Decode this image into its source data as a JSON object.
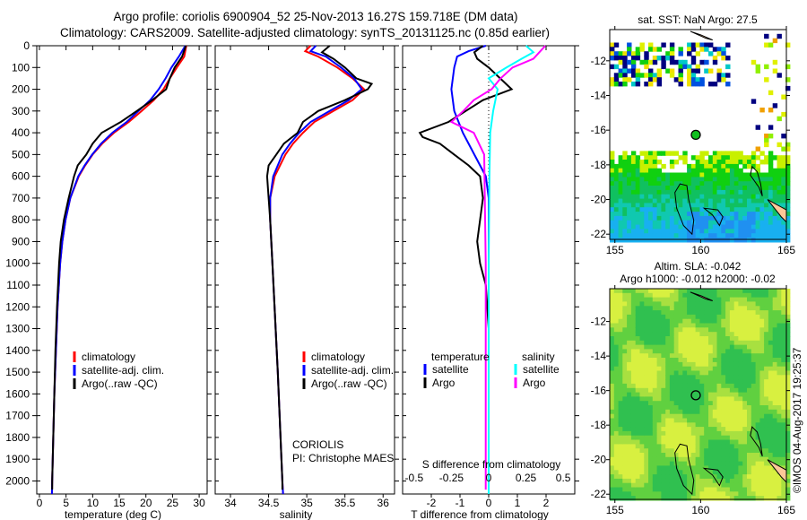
{
  "title_line1": "Argo profile: coriolis 6900904_52 25-Nov-2013 16.27S 159.718E (DM data)",
  "title_line2": "Climatology: CARS2009. Satellite-adjusted climatology: synTS_20131125.nc (0.85d earlier)",
  "footer_stamp": "©IMOS 04-Aug-2017 19:25:37",
  "colors": {
    "climatology": "#ff0000",
    "satellite": "#0000ff",
    "argo": "#000000",
    "s_satellite": "#00ffff",
    "s_argo": "#ff00ff"
  },
  "chart_data": [
    {
      "type": "line",
      "id": "temperature",
      "xlabel": "temperature (deg C)",
      "ylabel": "",
      "xlim": [
        -0.5,
        31.5
      ],
      "ylim": [
        2060,
        0
      ],
      "xticks": [
        0,
        5,
        10,
        15,
        20,
        25,
        30
      ],
      "yticks": [
        0,
        100,
        200,
        300,
        400,
        500,
        600,
        700,
        800,
        900,
        1000,
        1100,
        1200,
        1300,
        1400,
        1500,
        1600,
        1700,
        1800,
        1900,
        2000
      ],
      "legend": [
        "climatology",
        "satellite-adj. clim.",
        "Argo(..raw -QC)"
      ],
      "legend_position": "bottom-center",
      "series": [
        {
          "name": "climatology",
          "color_key": "climatology",
          "points": [
            [
              0,
              27.6
            ],
            [
              50,
              27.2
            ],
            [
              100,
              25.8
            ],
            [
              150,
              24.5
            ],
            [
              200,
              23.3
            ],
            [
              250,
              21.5
            ],
            [
              300,
              19.2
            ],
            [
              350,
              16.8
            ],
            [
              400,
              14
            ],
            [
              450,
              11.8
            ],
            [
              500,
              10
            ],
            [
              550,
              8.6
            ],
            [
              600,
              7.4
            ],
            [
              700,
              5.8
            ],
            [
              800,
              4.9
            ],
            [
              900,
              4.3
            ],
            [
              1000,
              3.9
            ],
            [
              1200,
              3.4
            ],
            [
              1400,
              3.1
            ],
            [
              1600,
              2.8
            ],
            [
              1800,
              2.6
            ],
            [
              2000,
              2.4
            ],
            [
              2060,
              2.35
            ]
          ]
        },
        {
          "name": "satellite-adj. clim.",
          "color_key": "satellite",
          "points": [
            [
              0,
              27.4
            ],
            [
              50,
              26.2
            ],
            [
              100,
              24.8
            ],
            [
              150,
              23.7
            ],
            [
              200,
              22.4
            ],
            [
              250,
              20.8
            ],
            [
              300,
              18.6
            ],
            [
              350,
              16.4
            ],
            [
              400,
              13.7
            ],
            [
              450,
              11.6
            ],
            [
              500,
              9.9
            ],
            [
              550,
              8.5
            ],
            [
              600,
              7.3
            ],
            [
              700,
              5.8
            ],
            [
              800,
              4.9
            ],
            [
              900,
              4.3
            ],
            [
              1000,
              3.9
            ],
            [
              1200,
              3.4
            ],
            [
              1400,
              3.1
            ],
            [
              1600,
              2.8
            ],
            [
              1800,
              2.6
            ],
            [
              2000,
              2.4
            ],
            [
              2060,
              2.35
            ]
          ]
        },
        {
          "name": "Argo(..raw -QC)",
          "color_key": "argo",
          "points": [
            [
              0,
              27.5
            ],
            [
              50,
              26.8
            ],
            [
              100,
              25.4
            ],
            [
              150,
              24.5
            ],
            [
              200,
              23.8
            ],
            [
              250,
              21.2
            ],
            [
              300,
              18.3
            ],
            [
              350,
              15.3
            ],
            [
              400,
              11.7
            ],
            [
              450,
              10
            ],
            [
              500,
              8.8
            ],
            [
              550,
              7.2
            ],
            [
              600,
              6.5
            ],
            [
              700,
              5.5
            ],
            [
              800,
              4.6
            ],
            [
              900,
              4.0
            ],
            [
              1000,
              3.7
            ],
            [
              1200,
              3.3
            ],
            [
              1400,
              3.0
            ],
            [
              1600,
              2.8
            ],
            [
              1800,
              2.6
            ],
            [
              2000,
              2.4
            ],
            [
              2040,
              2.4
            ]
          ]
        }
      ]
    },
    {
      "type": "line",
      "id": "salinity",
      "xlabel": "salinity",
      "ylabel": "",
      "xlim": [
        33.8,
        36.15
      ],
      "ylim": [
        2060,
        0
      ],
      "xticks": [
        34,
        34.5,
        35,
        35.5,
        36
      ],
      "legend": [
        "climatology",
        "satellite-adj. clim.",
        "Argo(..raw -QC)"
      ],
      "legend_position": "bottom-center",
      "annotation": [
        "CORIOLIS",
        "PI: Christophe MAES"
      ],
      "series": [
        {
          "name": "climatology",
          "color_key": "climatology",
          "points": [
            [
              0,
              35.05
            ],
            [
              25,
              34.98
            ],
            [
              50,
              35.15
            ],
            [
              100,
              35.4
            ],
            [
              150,
              35.6
            ],
            [
              200,
              35.75
            ],
            [
              250,
              35.6
            ],
            [
              300,
              35.35
            ],
            [
              350,
              35.1
            ],
            [
              400,
              34.95
            ],
            [
              450,
              34.82
            ],
            [
              500,
              34.72
            ],
            [
              600,
              34.58
            ],
            [
              700,
              34.52
            ],
            [
              800,
              34.52
            ],
            [
              1000,
              34.55
            ],
            [
              1500,
              34.62
            ],
            [
              2000,
              34.68
            ],
            [
              2060,
              34.69
            ]
          ]
        },
        {
          "name": "satellite-adj. clim.",
          "color_key": "satellite",
          "points": [
            [
              0,
              35.12
            ],
            [
              25,
              35.05
            ],
            [
              50,
              35.25
            ],
            [
              100,
              35.45
            ],
            [
              150,
              35.62
            ],
            [
              200,
              35.72
            ],
            [
              250,
              35.55
            ],
            [
              300,
              35.3
            ],
            [
              350,
              35.05
            ],
            [
              400,
              34.9
            ],
            [
              450,
              34.78
            ],
            [
              500,
              34.68
            ],
            [
              600,
              34.56
            ],
            [
              700,
              34.52
            ],
            [
              800,
              34.52
            ],
            [
              1000,
              34.55
            ],
            [
              1500,
              34.62
            ],
            [
              2000,
              34.68
            ],
            [
              2060,
              34.69
            ]
          ]
        },
        {
          "name": "Argo(..raw -QC)",
          "color_key": "argo",
          "points": [
            [
              0,
              35.3
            ],
            [
              30,
              35.2
            ],
            [
              60,
              35.35
            ],
            [
              100,
              35.5
            ],
            [
              150,
              35.65
            ],
            [
              175,
              35.85
            ],
            [
              200,
              35.8
            ],
            [
              250,
              35.5
            ],
            [
              300,
              35.15
            ],
            [
              350,
              34.95
            ],
            [
              400,
              34.88
            ],
            [
              450,
              34.7
            ],
            [
              500,
              34.6
            ],
            [
              550,
              34.5
            ],
            [
              600,
              34.48
            ],
            [
              700,
              34.5
            ],
            [
              800,
              34.52
            ],
            [
              1000,
              34.55
            ],
            [
              1500,
              34.62
            ],
            [
              2000,
              34.68
            ],
            [
              2040,
              34.68
            ]
          ]
        }
      ]
    },
    {
      "type": "line",
      "id": "differences",
      "xlabel": "T difference from climatology",
      "x2label": "S difference from climatology",
      "xlim": [
        -3,
        3
      ],
      "x2lim": [
        -0.5775,
        0.5775
      ],
      "ylim": [
        2060,
        0
      ],
      "xticks": [
        -2,
        -1,
        0,
        1,
        2
      ],
      "x2ticks": [
        "-0.5",
        "-0.25",
        "0",
        "0.25",
        "0.5"
      ],
      "legend_groups": [
        {
          "title": "temperature",
          "items": [
            "satellite",
            "Argo"
          ]
        },
        {
          "title": "salinity",
          "items": [
            "satellite",
            "Argo"
          ]
        }
      ],
      "series": [
        {
          "name": "T satellite",
          "axis": "T",
          "color_key": "satellite",
          "points": [
            [
              0,
              -0.1
            ],
            [
              25,
              -0.7
            ],
            [
              50,
              -1.1
            ],
            [
              100,
              -1.2
            ],
            [
              150,
              -1.25
            ],
            [
              200,
              -1.3
            ],
            [
              300,
              -1.2
            ],
            [
              400,
              -0.9
            ],
            [
              500,
              -0.5
            ],
            [
              600,
              -0.1
            ],
            [
              700,
              0
            ],
            [
              1000,
              0
            ],
            [
              2060,
              0
            ]
          ]
        },
        {
          "name": "T Argo",
          "axis": "T",
          "color_key": "argo",
          "points": [
            [
              0,
              -0.2
            ],
            [
              30,
              -0.5
            ],
            [
              60,
              -0.4
            ],
            [
              100,
              0
            ],
            [
              150,
              0.4
            ],
            [
              200,
              0.8
            ],
            [
              250,
              -0.2
            ],
            [
              300,
              -0.8
            ],
            [
              350,
              -1.4
            ],
            [
              400,
              -2.4
            ],
            [
              420,
              -2.3
            ],
            [
              450,
              -1.7
            ],
            [
              500,
              -1.2
            ],
            [
              550,
              -0.7
            ],
            [
              600,
              -0.3
            ],
            [
              700,
              -0.2
            ],
            [
              800,
              -0.3
            ],
            [
              900,
              -0.4
            ],
            [
              1000,
              -0.3
            ],
            [
              1100,
              -0.1
            ],
            [
              1300,
              0
            ],
            [
              2040,
              0
            ]
          ]
        },
        {
          "name": "S satellite",
          "axis": "S",
          "color_key": "s_satellite",
          "points": [
            [
              0,
              0.25
            ],
            [
              30,
              0.3
            ],
            [
              60,
              0.22
            ],
            [
              100,
              0.12
            ],
            [
              150,
              0.0
            ],
            [
              200,
              0.06
            ],
            [
              300,
              0.03
            ],
            [
              400,
              0.01
            ],
            [
              600,
              0.005
            ],
            [
              1000,
              0.0
            ],
            [
              2060,
              0.0
            ]
          ]
        },
        {
          "name": "S Argo",
          "axis": "S",
          "color_key": "s_argo",
          "points": [
            [
              0,
              0.38
            ],
            [
              30,
              0.34
            ],
            [
              60,
              0.3
            ],
            [
              100,
              0.16
            ],
            [
              150,
              0.08
            ],
            [
              200,
              0.02
            ],
            [
              250,
              -0.1
            ],
            [
              300,
              -0.17
            ],
            [
              350,
              -0.25
            ],
            [
              400,
              -0.1
            ],
            [
              500,
              -0.03
            ],
            [
              1000,
              -0.02
            ],
            [
              2040,
              -0.02
            ]
          ]
        }
      ]
    },
    {
      "type": "heatmap",
      "id": "sst_map",
      "title": "sat. SST: NaN Argo: 27.5",
      "xlim": [
        154.7,
        165
      ],
      "ylim": [
        -22.3,
        -10.2
      ],
      "xticks": [
        155,
        160,
        165
      ],
      "yticks": [
        -12,
        -14,
        -16,
        -18,
        -20,
        -22
      ],
      "marker": {
        "lon": 159.718,
        "lat": -16.27
      }
    },
    {
      "type": "heatmap",
      "id": "sla_map",
      "title": "Altim. SLA: -0.042",
      "subtitle": "Argo h1000: -0.012 h2000: -0.02",
      "xlim": [
        154.7,
        165
      ],
      "ylim": [
        -22.3,
        -10.1
      ],
      "xticks": [
        155,
        160,
        165
      ],
      "yticks": [
        -12,
        -14,
        -16,
        -18,
        -20,
        -22
      ],
      "marker": {
        "lon": 159.718,
        "lat": -16.27
      }
    }
  ]
}
